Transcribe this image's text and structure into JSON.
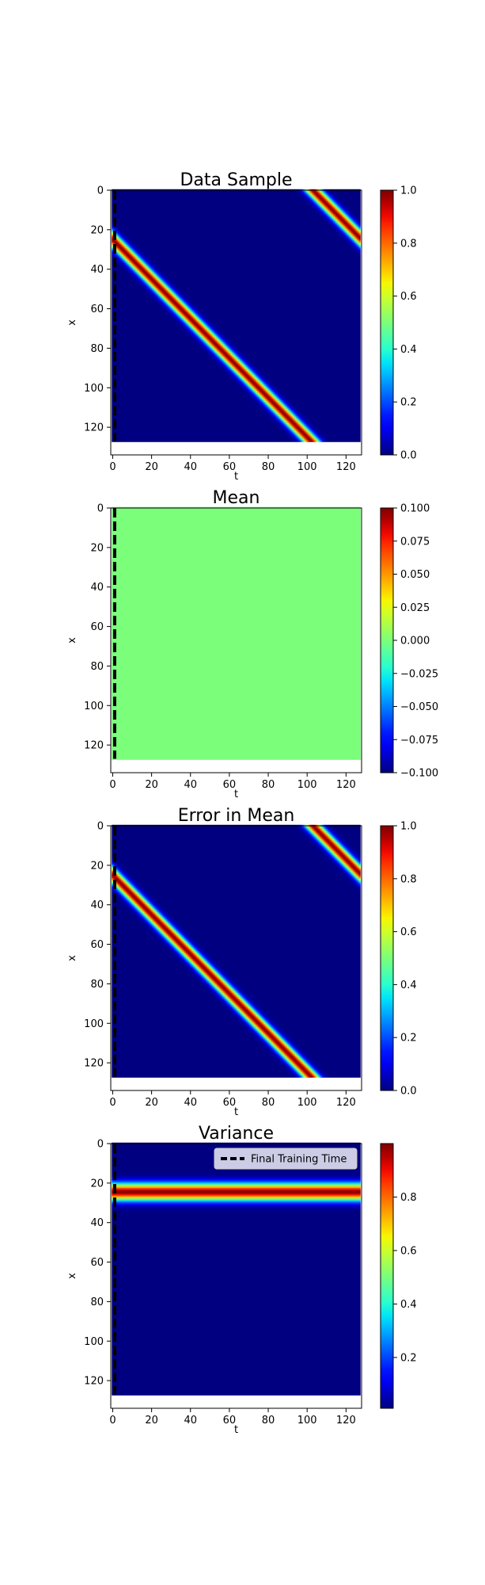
{
  "figure": {
    "background": "#ffffff",
    "colormap": "jet",
    "legend": {
      "label": "Final Training Time",
      "location": "upper-right",
      "panel": 3
    }
  },
  "chart_data": [
    {
      "type": "heatmap",
      "title": "Data Sample",
      "xlabel": "t",
      "ylabel": "x",
      "xlim": [
        -1,
        128
      ],
      "ylim": [
        134,
        0
      ],
      "data_extent_x": [
        0,
        127
      ],
      "data_extent_y": [
        0,
        127
      ],
      "xticks": [
        0,
        20,
        40,
        60,
        80,
        100,
        120
      ],
      "yticks": [
        0,
        20,
        40,
        60,
        80,
        100,
        120
      ],
      "field": {
        "kind": "travelling-pulse",
        "x0": 25,
        "speed": 1,
        "period": 128,
        "width": 3.0
      },
      "final_training_time": 1,
      "colorbar": {
        "min": 0.0,
        "max": 1.0,
        "ticks": [
          "0.0",
          "0.2",
          "0.4",
          "0.6",
          "0.8",
          "1.0"
        ],
        "tick_values": [
          0.0,
          0.2,
          0.4,
          0.6,
          0.8,
          1.0
        ]
      }
    },
    {
      "type": "heatmap",
      "title": "Mean",
      "xlabel": "t",
      "ylabel": "x",
      "xlim": [
        -1,
        128
      ],
      "ylim": [
        134,
        0
      ],
      "data_extent_x": [
        0,
        127
      ],
      "data_extent_y": [
        0,
        127
      ],
      "xticks": [
        0,
        20,
        40,
        60,
        80,
        100,
        120
      ],
      "yticks": [
        0,
        20,
        40,
        60,
        80,
        100,
        120
      ],
      "field": {
        "kind": "constant",
        "value": 0.0
      },
      "final_training_time": 1,
      "colorbar": {
        "min": -0.1,
        "max": 0.1,
        "ticks": [
          "−0.100",
          "−0.075",
          "−0.050",
          "−0.025",
          "0.000",
          "0.025",
          "0.050",
          "0.075",
          "0.100"
        ],
        "tick_values": [
          -0.1,
          -0.075,
          -0.05,
          -0.025,
          0.0,
          0.025,
          0.05,
          0.075,
          0.1
        ]
      }
    },
    {
      "type": "heatmap",
      "title": "Error in Mean",
      "xlabel": "t",
      "ylabel": "x",
      "xlim": [
        -1,
        128
      ],
      "ylim": [
        134,
        0
      ],
      "data_extent_x": [
        0,
        127
      ],
      "data_extent_y": [
        0,
        127
      ],
      "xticks": [
        0,
        20,
        40,
        60,
        80,
        100,
        120
      ],
      "yticks": [
        0,
        20,
        40,
        60,
        80,
        100,
        120
      ],
      "field": {
        "kind": "travelling-pulse",
        "x0": 25,
        "speed": 1,
        "period": 128,
        "width": 3.0
      },
      "final_training_time": 1,
      "colorbar": {
        "min": 0.0,
        "max": 1.0,
        "ticks": [
          "0.0",
          "0.2",
          "0.4",
          "0.6",
          "0.8",
          "1.0"
        ],
        "tick_values": [
          0.0,
          0.2,
          0.4,
          0.6,
          0.8,
          1.0
        ]
      }
    },
    {
      "type": "heatmap",
      "title": "Variance",
      "xlabel": "t",
      "ylabel": "x",
      "xlim": [
        -1,
        128
      ],
      "ylim": [
        134,
        0
      ],
      "data_extent_x": [
        0,
        127
      ],
      "data_extent_y": [
        0,
        127
      ],
      "xticks": [
        0,
        20,
        40,
        60,
        80,
        100,
        120
      ],
      "yticks": [
        0,
        20,
        40,
        60,
        80,
        100,
        120
      ],
      "field": {
        "kind": "horizontal-band",
        "x0": 24.5,
        "width": 3.0,
        "min": 0.01,
        "max": 1.0
      },
      "final_training_time": 1,
      "colorbar": {
        "min": 0.01,
        "max": 1.0,
        "ticks": [
          "0.2",
          "0.4",
          "0.6",
          "0.8"
        ],
        "tick_values": [
          0.2,
          0.4,
          0.6,
          0.8
        ]
      }
    }
  ]
}
